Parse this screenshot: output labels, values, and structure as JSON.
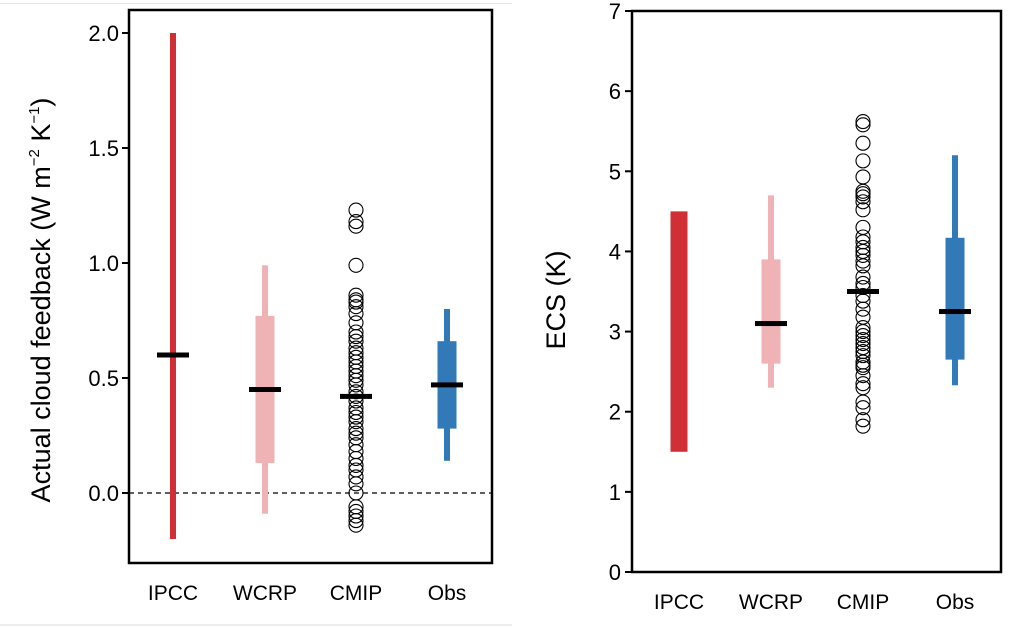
{
  "chart_data": [
    {
      "type": "range-strip",
      "title": "",
      "ylabel_main": "Actual cloud feedback (W m",
      "ylabel_sup1": "−2",
      "ylabel_mid": " K",
      "ylabel_sup2": "−1",
      "ylabel_end": ")",
      "xlabel": "",
      "ylim": [
        -0.3,
        2.1
      ],
      "yticks": [
        0.0,
        0.5,
        1.0,
        1.5,
        2.0
      ],
      "ytick_labels": [
        "0.0",
        "0.5",
        "1.0",
        "1.5",
        "2.0"
      ],
      "reference_line": {
        "y": 0.0,
        "style": "dashed"
      },
      "categories": [
        "IPCC",
        "WCRP",
        "CMIP",
        "Obs"
      ],
      "colors": {
        "IPCC": "#d03035",
        "WCRP": "#f0b3b5",
        "CMIP": "#000000",
        "Obs": "#3279b8"
      },
      "series": {
        "IPCC": {
          "central": 0.6,
          "very_likely": [
            -0.2,
            2.0
          ],
          "likely": null
        },
        "WCRP": {
          "central": 0.45,
          "very_likely": [
            -0.09,
            0.99
          ],
          "likely": [
            0.13,
            0.77
          ]
        },
        "Obs": {
          "central": 0.47,
          "very_likely": [
            0.14,
            0.8
          ],
          "likely": [
            0.28,
            0.66
          ]
        },
        "CMIP": {
          "central": 0.42,
          "values": [
            1.23,
            1.18,
            1.16,
            0.99,
            0.86,
            0.84,
            0.83,
            0.81,
            0.78,
            0.74,
            0.7,
            0.68,
            0.66,
            0.63,
            0.61,
            0.59,
            0.57,
            0.55,
            0.53,
            0.51,
            0.49,
            0.47,
            0.44,
            0.42,
            0.4,
            0.37,
            0.35,
            0.33,
            0.31,
            0.28,
            0.26,
            0.24,
            0.21,
            0.18,
            0.15,
            0.12,
            0.1,
            0.07,
            0.04,
            0.0,
            -0.06,
            -0.08,
            -0.1,
            -0.12,
            -0.14
          ]
        }
      }
    },
    {
      "type": "range-strip",
      "title": "",
      "ylabel": "ECS (K)",
      "xlabel": "",
      "ylim": [
        0,
        7
      ],
      "yticks": [
        0,
        1,
        2,
        3,
        4,
        5,
        6,
        7
      ],
      "ytick_labels": [
        "0",
        "1",
        "2",
        "3",
        "4",
        "5",
        "6",
        "7"
      ],
      "categories": [
        "IPCC",
        "WCRP",
        "CMIP",
        "Obs"
      ],
      "colors": {
        "IPCC": "#d03035",
        "WCRP": "#f0b3b5",
        "CMIP": "#000000",
        "Obs": "#3279b8"
      },
      "series": {
        "IPCC": {
          "central": null,
          "very_likely": null,
          "likely": [
            1.5,
            4.5
          ]
        },
        "WCRP": {
          "central": 3.1,
          "very_likely": [
            2.3,
            4.7
          ],
          "likely": [
            2.6,
            3.9
          ]
        },
        "Obs": {
          "central": 3.25,
          "very_likely": [
            2.33,
            5.2
          ],
          "likely": [
            2.65,
            4.17
          ]
        },
        "CMIP": {
          "central": 3.5,
          "values": [
            5.62,
            5.58,
            5.35,
            5.13,
            4.93,
            4.75,
            4.72,
            4.68,
            4.62,
            4.52,
            4.3,
            4.18,
            4.12,
            4.05,
            4.0,
            3.95,
            3.88,
            3.82,
            3.68,
            3.6,
            3.55,
            3.45,
            3.38,
            3.28,
            3.18,
            3.05,
            3.0,
            2.95,
            2.9,
            2.85,
            2.8,
            2.75,
            2.7,
            2.62,
            2.58,
            2.55,
            2.45,
            2.35,
            2.3,
            2.12,
            2.05,
            1.9,
            1.82
          ]
        }
      }
    }
  ]
}
